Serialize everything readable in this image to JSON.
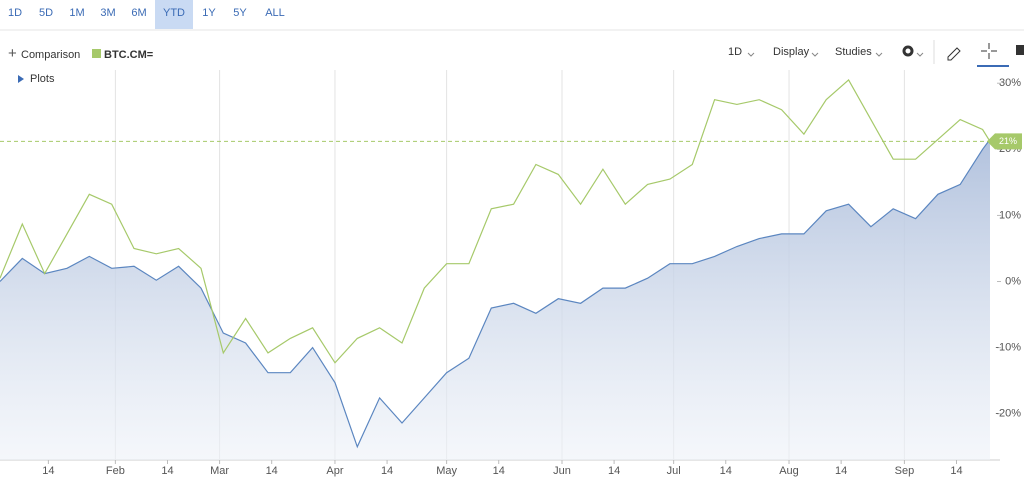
{
  "ui": {
    "ranges": [
      "1D",
      "5D",
      "1M",
      "3M",
      "6M",
      "YTD",
      "1Y",
      "5Y",
      "ALL"
    ],
    "selected_range": 5,
    "comparison": "Comparison",
    "interval": "1D",
    "display": "Display",
    "studies": "Studies",
    "plots": "Plots"
  },
  "chart_data": {
    "type": "line",
    "x": [
      0,
      6,
      12,
      18,
      24,
      30,
      36,
      42,
      48,
      54,
      60,
      66,
      72,
      78,
      84,
      90,
      96,
      102,
      108,
      114,
      120,
      126,
      132,
      138,
      144,
      150,
      156,
      162,
      168,
      174,
      180,
      186,
      192,
      198,
      204,
      210,
      216,
      222,
      228,
      234,
      240,
      246,
      252,
      258,
      264,
      266
    ],
    "series": [
      {
        "color": "#5b86c0",
        "area": true,
        "values": [
          0,
          3.5,
          1.2,
          2,
          3.8,
          2,
          2.3,
          0.2,
          2.3,
          -1,
          -7.8,
          -9.3,
          -13.8,
          -13.8,
          -10,
          -15.3,
          -25,
          -17.6,
          -21.4,
          -17.6,
          -13.8,
          -11.6,
          -4,
          -3.3,
          -4.8,
          -2.6,
          -3.3,
          -1,
          -1,
          0.5,
          2.7,
          2.7,
          3.8,
          5.3,
          6.5,
          7.2,
          7.2,
          10.7,
          11.7,
          8.3,
          11,
          9.5,
          13.2,
          14.7,
          20,
          21.5
        ]
      },
      {
        "name": "BTC.CM=",
        "color": "#a6c96a",
        "values": [
          0.5,
          8.7,
          1.2,
          7.2,
          13.2,
          11.7,
          5,
          4.2,
          5,
          2,
          -10.8,
          -5.6,
          -10.8,
          -8.6,
          -7,
          -12.3,
          -8.6,
          -7,
          -9.3,
          -1,
          2.7,
          2.7,
          11,
          11.7,
          17.7,
          16.2,
          11.7,
          17,
          11.7,
          14.7,
          15.5,
          17.7,
          27.5,
          26.8,
          27.5,
          26,
          22.3,
          27.5,
          30.5,
          24.5,
          18.5,
          18.5,
          21.5,
          24.5,
          23,
          21.2
        ],
        "value_labels": [
          null,
          null,
          null,
          null,
          null,
          null,
          null,
          null,
          null,
          null,
          null,
          null,
          null,
          null,
          null,
          null,
          null,
          null,
          null,
          null,
          null,
          null,
          null,
          null,
          null,
          null,
          null,
          null,
          null,
          null,
          null,
          null,
          null,
          null,
          null,
          null,
          null,
          null,
          null,
          null,
          null,
          null,
          null,
          null,
          null,
          "21%"
        ]
      }
    ],
    "xlim": [
      0,
      266
    ],
    "xticks": [
      {
        "value": 13,
        "label": "14"
      },
      {
        "value": 31,
        "label": "Feb"
      },
      {
        "value": 45,
        "label": "14"
      },
      {
        "value": 59,
        "label": "Mar"
      },
      {
        "value": 73,
        "label": "14"
      },
      {
        "value": 90,
        "label": "Apr"
      },
      {
        "value": 104,
        "label": "14"
      },
      {
        "value": 120,
        "label": "May"
      },
      {
        "value": 134,
        "label": "14"
      },
      {
        "value": 151,
        "label": "Jun"
      },
      {
        "value": 165,
        "label": "14"
      },
      {
        "value": 181,
        "label": "Jul"
      },
      {
        "value": 195,
        "label": "14"
      },
      {
        "value": 212,
        "label": "Aug"
      },
      {
        "value": 226,
        "label": "14"
      },
      {
        "value": 243,
        "label": "Sep"
      },
      {
        "value": 257,
        "label": "14"
      }
    ],
    "ylim": [
      -27,
      32
    ],
    "yticks": [
      {
        "value": 30,
        "label": "30%"
      },
      {
        "value": 20,
        "label": "20%"
      },
      {
        "value": 10,
        "label": "10%"
      },
      {
        "value": 0,
        "label": "0%"
      },
      {
        "value": -10,
        "label": "-10%"
      },
      {
        "value": -20,
        "label": "-20%"
      }
    ]
  }
}
